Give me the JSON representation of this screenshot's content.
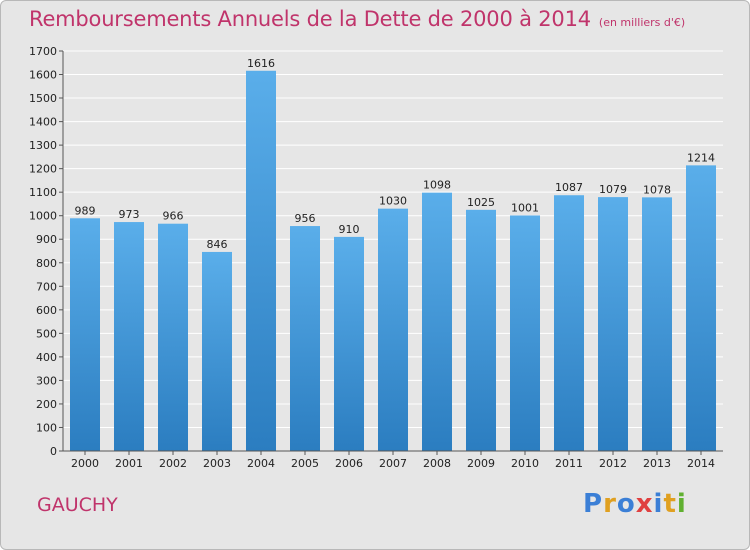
{
  "title": "Remboursements Annuels de la Dette de 2000 à 2014",
  "subtitle": "(en milliers d'€)",
  "city": "GAUCHY",
  "logo": {
    "text": "Proxiti",
    "colors": [
      "#3b7fd6",
      "#e0a020",
      "#3b7fd6",
      "#e04040",
      "#3b7fd6",
      "#e0a020",
      "#60b030"
    ]
  },
  "colors": {
    "bar_top": "#5aaeea",
    "bar_bottom": "#2b7dc0",
    "accent": "#c0346b",
    "background": "#e6e6e6",
    "grid": "#ffffff"
  },
  "chart_data": {
    "type": "bar",
    "title": "Remboursements Annuels de la Dette de 2000 à 2014",
    "subtitle": "(en milliers d'€)",
    "categories": [
      "2000",
      "2001",
      "2002",
      "2003",
      "2004",
      "2005",
      "2006",
      "2007",
      "2008",
      "2009",
      "2010",
      "2011",
      "2012",
      "2013",
      "2014"
    ],
    "values": [
      989,
      973,
      966,
      846,
      1616,
      956,
      910,
      1030,
      1098,
      1025,
      1001,
      1087,
      1079,
      1078,
      1214
    ],
    "ylim": [
      0,
      1700
    ],
    "yticks": [
      0,
      100,
      200,
      300,
      400,
      500,
      600,
      700,
      800,
      900,
      1000,
      1100,
      1200,
      1300,
      1400,
      1500,
      1600,
      1700
    ],
    "grid": true,
    "xlabel": "",
    "ylabel": ""
  }
}
